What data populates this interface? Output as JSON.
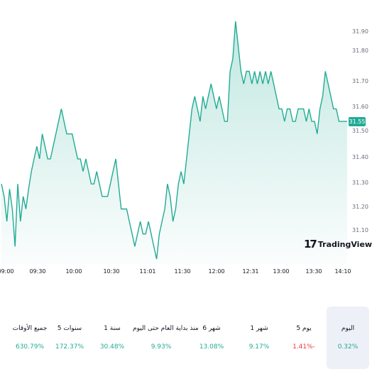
{
  "chart": {
    "brand": "TradingView",
    "last_price": "31.55",
    "y_ticks": [
      "31.90",
      "31.80",
      "31.70",
      "31.60",
      "31.50",
      "31.40",
      "31.30",
      "31.20",
      "31.10"
    ],
    "x_ticks": [
      "09:00",
      "09:30",
      "10:00",
      "10:30",
      "11:01",
      "11:30",
      "12:00",
      "12:31",
      "13:00",
      "13:30",
      "14:10"
    ],
    "colors": {
      "line": "#22ab94",
      "fill_top": "#22ab94",
      "fill_bottom": "#ffffff",
      "tag": "#22ab94"
    }
  },
  "chart_data": {
    "type": "area",
    "ylim": [
      31.0,
      31.95
    ],
    "grid": false,
    "values": [
      31.3,
      31.25,
      31.15,
      31.28,
      31.2,
      31.05,
      31.3,
      31.15,
      31.25,
      31.2,
      31.28,
      31.35,
      31.4,
      31.45,
      31.4,
      31.5,
      31.45,
      31.4,
      31.4,
      31.45,
      31.5,
      31.55,
      31.6,
      31.55,
      31.5,
      31.5,
      31.5,
      31.45,
      31.4,
      31.4,
      31.35,
      31.4,
      31.35,
      31.3,
      31.3,
      31.35,
      31.3,
      31.25,
      31.25,
      31.25,
      31.3,
      31.35,
      31.4,
      31.3,
      31.2,
      31.2,
      31.2,
      31.15,
      31.1,
      31.05,
      31.1,
      31.15,
      31.1,
      31.1,
      31.15,
      31.1,
      31.05,
      31.0,
      31.1,
      31.15,
      31.2,
      31.3,
      31.25,
      31.15,
      31.2,
      31.3,
      31.35,
      31.3,
      31.4,
      31.5,
      31.6,
      31.65,
      31.6,
      31.55,
      31.65,
      31.6,
      31.65,
      31.7,
      31.65,
      31.6,
      31.65,
      31.6,
      31.55,
      31.55,
      31.75,
      31.8,
      31.95,
      31.85,
      31.75,
      31.7,
      31.75,
      31.75,
      31.7,
      31.75,
      31.7,
      31.75,
      31.7,
      31.75,
      31.7,
      31.75,
      31.7,
      31.65,
      31.6,
      31.6,
      31.55,
      31.6,
      31.6,
      31.55,
      31.55,
      31.6,
      31.6,
      31.6,
      31.55,
      31.6,
      31.55,
      31.55,
      31.5,
      31.6,
      31.65,
      31.75,
      31.7,
      31.65,
      31.6,
      31.6,
      31.55,
      31.55,
      31.55,
      31.55
    ],
    "current": 31.55
  },
  "periods": [
    {
      "label": "جميع الأوقات",
      "value": "630.79%",
      "color": "#22ab94",
      "active": false
    },
    {
      "label": "5 سنوات",
      "value": "172.37%",
      "color": "#22ab94",
      "active": false
    },
    {
      "label": "1 سنة",
      "value": "30.48%",
      "color": "#22ab94",
      "active": false
    },
    {
      "label": "منذ بداية العام حتى اليوم",
      "value": "9.93%",
      "color": "#22ab94",
      "active": false
    },
    {
      "label": "6 شهر",
      "value": "13.08%",
      "color": "#22ab94",
      "active": false
    },
    {
      "label": "1 شهر",
      "value": "9.17%",
      "color": "#22ab94",
      "active": false
    },
    {
      "label": "5 يوم",
      "value": "1.41%-",
      "color": "#f23645",
      "active": false
    },
    {
      "label": "اليوم",
      "value": "0.32%",
      "color": "#22ab94",
      "active": true
    }
  ]
}
